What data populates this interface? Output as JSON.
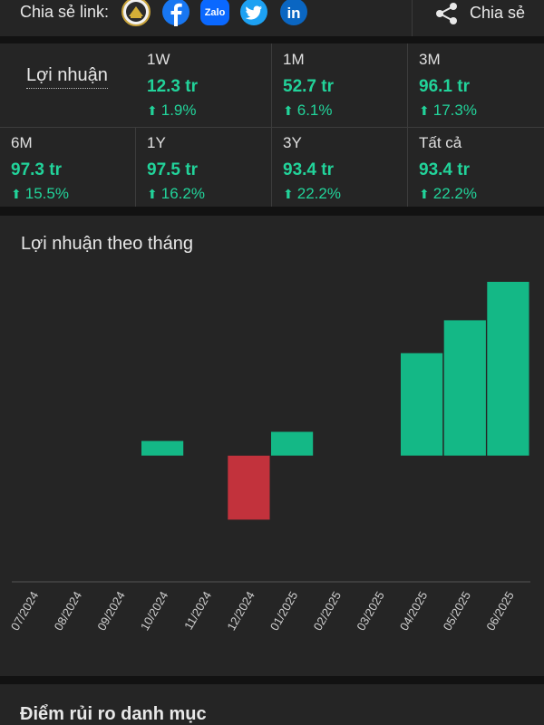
{
  "share": {
    "label": "Chia sẻ link:",
    "button_label": "Chia sẻ",
    "icons": [
      {
        "name": "app-logo-icon",
        "color": "#f2f2f2"
      },
      {
        "name": "facebook-icon",
        "color": "#1877f2"
      },
      {
        "name": "zalo-icon",
        "color": "#0a68ff",
        "text": "Zalo"
      },
      {
        "name": "twitter-icon",
        "color": "#1da1f2"
      },
      {
        "name": "linkedin-icon",
        "color": "#0a66c2",
        "text": "in"
      }
    ]
  },
  "profit_summary": {
    "label": "Lợi nhuận",
    "items": [
      {
        "period": "1W",
        "value": "12.3 tr",
        "change": "1.9%"
      },
      {
        "period": "1M",
        "value": "52.7 tr",
        "change": "6.1%"
      },
      {
        "period": "3M",
        "value": "96.1 tr",
        "change": "17.3%"
      },
      {
        "period": "6M",
        "value": "97.3 tr",
        "change": "15.5%"
      },
      {
        "period": "1Y",
        "value": "97.5 tr",
        "change": "16.2%"
      },
      {
        "period": "3Y",
        "value": "93.4 tr",
        "change": "22.2%"
      },
      {
        "period": "Tất cả",
        "value": "93.4 tr",
        "change": "22.2%"
      }
    ]
  },
  "chart_data": {
    "type": "bar",
    "title": "Lợi nhuận theo tháng",
    "categories": [
      "07/2024",
      "08/2024",
      "09/2024",
      "10/2024",
      "11/2024",
      "12/2024",
      "01/2025",
      "02/2025",
      "03/2025",
      "04/2025",
      "05/2025",
      "06/2025"
    ],
    "values": [
      0,
      0,
      0,
      1.6,
      0,
      -7.0,
      2.6,
      0,
      0,
      11.2,
      14.8,
      19.0
    ],
    "ylim": [
      -13.8,
      19.5
    ],
    "positive_color": "#14b886",
    "negative_color": "#c2323c"
  },
  "risk_section": {
    "title": "Điểm rủi ro danh mục"
  }
}
